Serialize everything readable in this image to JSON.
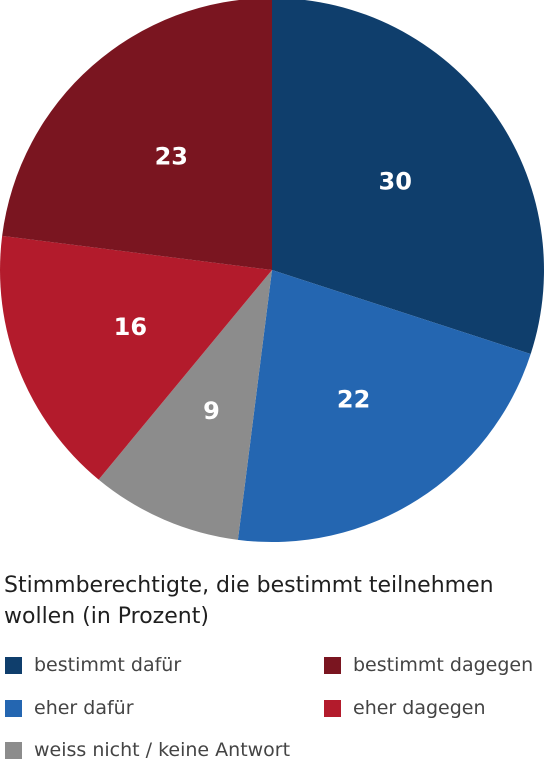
{
  "chart_data": {
    "type": "pie",
    "caption": "Stimmberechtigte, die bestimmt teilnehmen wollen (in Prozent)",
    "series": [
      {
        "name": "bestimmt dafür",
        "value": 30,
        "color": "#0f3e6c"
      },
      {
        "name": "eher dafür",
        "value": 22,
        "color": "#2466b1"
      },
      {
        "name": "weiss nicht / keine Antwort",
        "value": 9,
        "color": "#8c8c8c"
      },
      {
        "name": "eher dagegen",
        "value": 16,
        "color": "#b31b2c"
      },
      {
        "name": "bestimmt dagegen",
        "value": 23,
        "color": "#7a1520"
      }
    ],
    "legend_order": [
      0,
      4,
      1,
      3,
      2
    ],
    "legend_position": "bottom"
  }
}
